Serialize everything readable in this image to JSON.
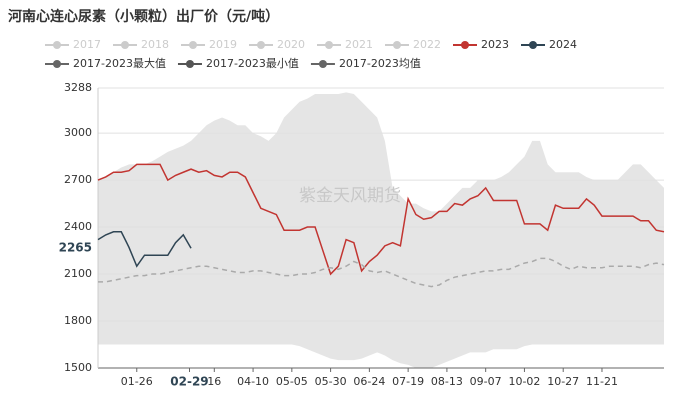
{
  "chart_data": {
    "type": "line",
    "title": "河南心连心尿素（小颗粒）出厂价（元/吨）",
    "watermark": "紫金天风期货",
    "legend_inactive": [
      "2017",
      "2018",
      "2019",
      "2020",
      "2021",
      "2022"
    ],
    "xlim": [
      1,
      366
    ],
    "xticks": [
      {
        "value": 26,
        "label": "01-26"
      },
      {
        "value": 60,
        "label": "02-29"
      },
      {
        "value": 76,
        "label": "16"
      },
      {
        "value": 101,
        "label": "04-10"
      },
      {
        "value": 126,
        "label": "05-05"
      },
      {
        "value": 151,
        "label": "05-30"
      },
      {
        "value": 176,
        "label": "06-24"
      },
      {
        "value": 201,
        "label": "07-19"
      },
      {
        "value": 226,
        "label": "08-13"
      },
      {
        "value": 251,
        "label": "09-07"
      },
      {
        "value": 276,
        "label": "10-02"
      },
      {
        "value": 301,
        "label": "10-27"
      },
      {
        "value": 326,
        "label": "11-21"
      }
    ],
    "xtick_highlight": 1,
    "ylim": [
      1500,
      3288
    ],
    "yticks": [
      1500,
      1800,
      2100,
      2400,
      2700,
      3000,
      3288
    ],
    "grid": true,
    "x": [
      1,
      6,
      11,
      16,
      21,
      26,
      31,
      36,
      41,
      46,
      51,
      56,
      61,
      66,
      71,
      76,
      81,
      86,
      91,
      96,
      101,
      106,
      111,
      116,
      121,
      126,
      131,
      136,
      141,
      146,
      151,
      156,
      161,
      166,
      171,
      176,
      181,
      186,
      191,
      196,
      201,
      206,
      211,
      216,
      221,
      226,
      231,
      236,
      241,
      246,
      251,
      256,
      261,
      266,
      271,
      276,
      281,
      286,
      291,
      296,
      301,
      306,
      311,
      316,
      321,
      326,
      331,
      336,
      341,
      346,
      351,
      356,
      361,
      366
    ],
    "series": [
      {
        "name": "2023",
        "color": "#c23531",
        "values": [
          2700,
          2720,
          2750,
          2750,
          2760,
          2800,
          2800,
          2800,
          2800,
          2700,
          2730,
          2750,
          2770,
          2750,
          2760,
          2730,
          2720,
          2750,
          2750,
          2720,
          2620,
          2520,
          2500,
          2480,
          2380,
          2380,
          2380,
          2400,
          2400,
          2250,
          2100,
          2150,
          2320,
          2300,
          2120,
          2180,
          2220,
          2280,
          2300,
          2280,
          2580,
          2480,
          2450,
          2460,
          2500,
          2500,
          2550,
          2540,
          2580,
          2600,
          2650,
          2570,
          2570,
          2570,
          2570,
          2420,
          2420,
          2420,
          2380,
          2540,
          2520,
          2520,
          2520,
          2580,
          2540,
          2470,
          2470,
          2470,
          2470,
          2470,
          2440,
          2440,
          2380,
          2370
        ]
      },
      {
        "name": "2024",
        "color": "#2f4554",
        "values": [
          2320,
          2350,
          2370,
          2370,
          2270,
          2150,
          2220,
          2220,
          2220,
          2220,
          2300,
          2350,
          2265,
          null,
          null,
          null,
          null,
          null,
          null,
          null,
          null,
          null,
          null,
          null,
          null,
          null,
          null,
          null,
          null,
          null,
          null,
          null,
          null,
          null,
          null,
          null,
          null,
          null,
          null,
          null,
          null,
          null,
          null,
          null,
          null,
          null,
          null,
          null,
          null,
          null,
          null,
          null,
          null,
          null,
          null,
          null,
          null,
          null,
          null,
          null,
          null,
          null,
          null,
          null,
          null,
          null,
          null,
          null,
          null,
          null,
          null,
          null,
          null,
          null
        ]
      },
      {
        "name": "2017-2023最大值",
        "color": "#666666",
        "values": [
          2700,
          2720,
          2750,
          2780,
          2800,
          2800,
          2800,
          2820,
          2850,
          2880,
          2900,
          2920,
          2950,
          3000,
          3050,
          3080,
          3100,
          3080,
          3050,
          3050,
          3000,
          2980,
          2950,
          3000,
          3100,
          3150,
          3200,
          3220,
          3250,
          3250,
          3250,
          3250,
          3260,
          3250,
          3200,
          3150,
          3100,
          2950,
          2650,
          2600,
          2550,
          2550,
          2520,
          2500,
          2500,
          2550,
          2600,
          2650,
          2650,
          2700,
          2700,
          2700,
          2720,
          2750,
          2800,
          2850,
          2950,
          2950,
          2800,
          2750,
          2750,
          2750,
          2750,
          2720,
          2700,
          2700,
          2700,
          2700,
          2750,
          2800,
          2800,
          2750,
          2700,
          2650
        ]
      },
      {
        "name": "2017-2023最小值",
        "color": "#555555",
        "values": [
          1650,
          1650,
          1650,
          1650,
          1650,
          1650,
          1650,
          1650,
          1650,
          1650,
          1650,
          1650,
          1650,
          1650,
          1650,
          1650,
          1650,
          1650,
          1650,
          1650,
          1650,
          1650,
          1650,
          1650,
          1650,
          1650,
          1640,
          1620,
          1600,
          1580,
          1560,
          1550,
          1550,
          1550,
          1560,
          1580,
          1600,
          1580,
          1550,
          1530,
          1520,
          1500,
          1500,
          1500,
          1520,
          1540,
          1560,
          1580,
          1600,
          1600,
          1600,
          1620,
          1620,
          1620,
          1620,
          1640,
          1650,
          1650,
          1650,
          1650,
          1650,
          1650,
          1650,
          1650,
          1650,
          1650,
          1650,
          1650,
          1650,
          1650,
          1650,
          1650,
          1650,
          1650
        ]
      },
      {
        "name": "2017-2023均值",
        "color": "#666666",
        "dashed": true,
        "values": [
          2050,
          2050,
          2060,
          2070,
          2080,
          2090,
          2090,
          2100,
          2100,
          2110,
          2120,
          2130,
          2140,
          2150,
          2150,
          2140,
          2130,
          2120,
          2110,
          2110,
          2120,
          2120,
          2110,
          2100,
          2090,
          2090,
          2100,
          2100,
          2110,
          2130,
          2140,
          2130,
          2150,
          2180,
          2160,
          2120,
          2110,
          2120,
          2100,
          2080,
          2060,
          2040,
          2030,
          2020,
          2030,
          2060,
          2080,
          2090,
          2100,
          2110,
          2120,
          2120,
          2130,
          2130,
          2150,
          2170,
          2180,
          2200,
          2200,
          2180,
          2150,
          2130,
          2150,
          2140,
          2140,
          2140,
          2150,
          2150,
          2150,
          2150,
          2140,
          2160,
          2170,
          2160
        ]
      }
    ],
    "band": [
      2,
      3
    ],
    "band_color": "#e5e5e5",
    "mean_line_color": "#aaaaaa",
    "last_value_series": 1
  }
}
